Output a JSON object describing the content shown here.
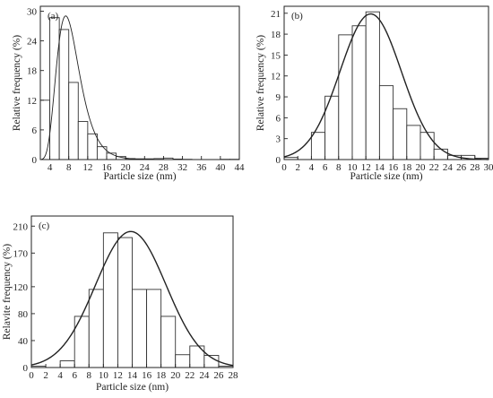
{
  "chart_data": [
    {
      "type": "bar",
      "panel_label": "(a)",
      "xlabel": "Particle size (nm)",
      "ylabel": "Relative frequency (%)",
      "xlim": [
        2,
        44
      ],
      "ylim": [
        0,
        31
      ],
      "xticks": [
        4,
        8,
        12,
        16,
        20,
        24,
        28,
        32,
        36,
        40,
        44
      ],
      "yticks": [
        0,
        6,
        12,
        18,
        24,
        30
      ],
      "bin_width": 2,
      "bins": [
        {
          "start": 2,
          "value": 12
        },
        {
          "start": 4,
          "value": 28.7
        },
        {
          "start": 6,
          "value": 26.3
        },
        {
          "start": 8,
          "value": 15.6
        },
        {
          "start": 10,
          "value": 7.7
        },
        {
          "start": 12,
          "value": 5.2
        },
        {
          "start": 14,
          "value": 2.6
        },
        {
          "start": 16,
          "value": 1.3
        },
        {
          "start": 18,
          "value": 0.6
        },
        {
          "start": 20,
          "value": 0.2
        },
        {
          "start": 22,
          "value": 0.15
        },
        {
          "start": 24,
          "value": 0.15
        },
        {
          "start": 26,
          "value": 0.2
        },
        {
          "start": 28,
          "value": 0.3
        },
        {
          "start": 30,
          "value": 0.1
        },
        {
          "start": 32,
          "value": 0.05
        },
        {
          "start": 40,
          "value": 0.05
        },
        {
          "start": 42,
          "value": 0.05
        }
      ],
      "fit": {
        "type": "lognormal",
        "peak_x": 7.8,
        "peak_y": 28.6,
        "median": 8.2,
        "sigma": 0.33
      }
    },
    {
      "type": "bar",
      "panel_label": "(b)",
      "xlabel": "Particle size (nm)",
      "ylabel": "Relative frequency (%)",
      "xlim": [
        0,
        30
      ],
      "ylim": [
        0,
        22
      ],
      "xticks": [
        0,
        2,
        4,
        6,
        8,
        10,
        12,
        14,
        16,
        18,
        20,
        22,
        24,
        26,
        28,
        30
      ],
      "yticks": [
        0,
        3,
        6,
        9,
        12,
        15,
        18,
        21
      ],
      "bin_width": 2,
      "bins": [
        {
          "start": 0,
          "value": 0.3
        },
        {
          "start": 4,
          "value": 3.9
        },
        {
          "start": 6,
          "value": 9.1
        },
        {
          "start": 8,
          "value": 17.9
        },
        {
          "start": 10,
          "value": 19.2
        },
        {
          "start": 12,
          "value": 21.2
        },
        {
          "start": 14,
          "value": 10.6
        },
        {
          "start": 16,
          "value": 7.3
        },
        {
          "start": 18,
          "value": 4.9
        },
        {
          "start": 20,
          "value": 3.9
        },
        {
          "start": 22,
          "value": 1.5
        },
        {
          "start": 24,
          "value": 0.6
        },
        {
          "start": 26,
          "value": 0.6
        },
        {
          "start": 28,
          "value": 0.2
        }
      ],
      "fit": {
        "type": "gaussian",
        "mean": 12.7,
        "sd": 4.5,
        "peak_y": 20.9
      }
    },
    {
      "type": "bar",
      "panel_label": "(c)",
      "xlabel": "Particle size (nm)",
      "ylabel": "Relavite frequency (%)",
      "xlim": [
        0,
        28
      ],
      "ylim": [
        0,
        225
      ],
      "xticks": [
        0,
        2,
        4,
        6,
        8,
        10,
        12,
        14,
        16,
        18,
        20,
        22,
        24,
        26,
        28
      ],
      "yticks": [
        0,
        40,
        80,
        120,
        170,
        210
      ],
      "bin_width": 2,
      "bins": [
        {
          "start": 0,
          "value": 2
        },
        {
          "start": 4,
          "value": 10
        },
        {
          "start": 6,
          "value": 76
        },
        {
          "start": 8,
          "value": 116
        },
        {
          "start": 10,
          "value": 200
        },
        {
          "start": 12,
          "value": 193
        },
        {
          "start": 14,
          "value": 116
        },
        {
          "start": 16,
          "value": 116
        },
        {
          "start": 18,
          "value": 76
        },
        {
          "start": 20,
          "value": 19
        },
        {
          "start": 22,
          "value": 32
        },
        {
          "start": 24,
          "value": 18
        },
        {
          "start": 26,
          "value": 2
        }
      ],
      "fit": {
        "type": "gaussian",
        "mean": 13.8,
        "sd": 4.9,
        "peak_y": 202
      }
    }
  ]
}
